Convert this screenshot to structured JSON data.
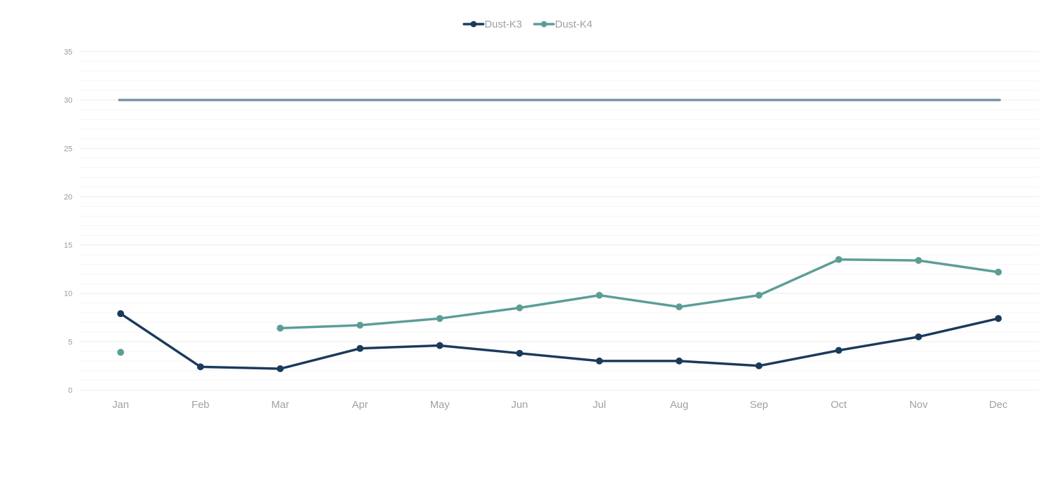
{
  "chart_data": {
    "type": "line",
    "title": "",
    "xlabel": "",
    "ylabel": "",
    "categories": [
      "Jan",
      "Feb",
      "Mar",
      "Apr",
      "May",
      "Jun",
      "Jul",
      "Aug",
      "Sep",
      "Oct",
      "Nov",
      "Dec"
    ],
    "ylim": [
      0,
      35
    ],
    "yticks": [
      "0",
      "5",
      "10",
      "15",
      "20",
      "25",
      "30",
      "35"
    ],
    "grid": true,
    "legend_position": "top-center",
    "series": [
      {
        "name": "Dust-K3",
        "color": "#1b3a5c",
        "values": [
          7.9,
          2.4,
          2.2,
          4.3,
          4.6,
          3.8,
          3.0,
          3.0,
          2.5,
          4.1,
          5.5,
          7.4
        ]
      },
      {
        "name": "Dust-K4",
        "color": "#5b9e97",
        "values": [
          3.9,
          null,
          6.4,
          6.7,
          7.4,
          8.5,
          9.8,
          8.6,
          9.8,
          13.5,
          13.4,
          12.2
        ]
      }
    ],
    "reference_line": {
      "value": 30,
      "color": "#7b8fae"
    }
  }
}
